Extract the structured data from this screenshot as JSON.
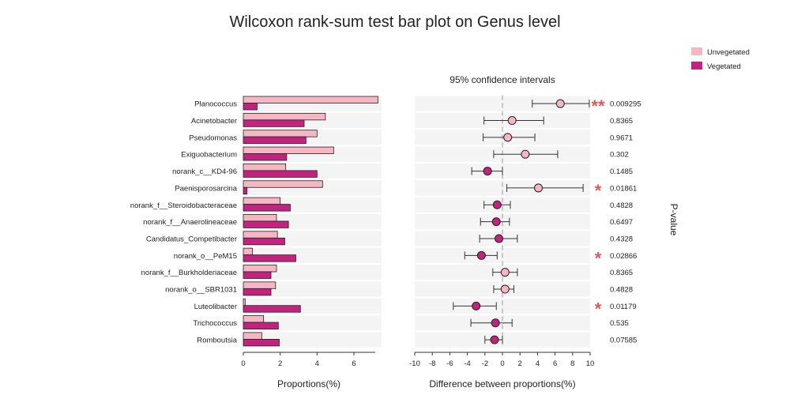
{
  "chart_data": {
    "type": "bar",
    "title": "Wilcoxon rank-sum test bar plot on Genus level",
    "subtitle": "95% confidence intervals",
    "left_xlabel": "Proportions(%)",
    "right_xlabel": "Difference between proportions(%)",
    "pvalue_label": "P-value",
    "left_xticks": [
      0,
      2,
      4,
      6
    ],
    "left_xlim": [
      0,
      7.5
    ],
    "right_xticks": [
      -10,
      -8,
      -6,
      -4,
      -2,
      0,
      2,
      4,
      6,
      8,
      10
    ],
    "right_xlim": [
      -10,
      10
    ],
    "colors": {
      "Unvegetated": "#f6b7c4",
      "Vegetated": "#c2237e",
      "stripe": "#f4f4f4",
      "star": "#e05a5a"
    },
    "series": [
      {
        "name": "Unvegetated",
        "color": "#f6b7c4"
      },
      {
        "name": "Vegetated",
        "color": "#c2237e"
      }
    ],
    "categories": [
      "Planococcus",
      "Acinetobacter",
      "Pseudomonas",
      "Exiguobacterium",
      "norank_c__KD4-96",
      "Paenisporosarcina",
      "norank_f__Steroidobacteraceae",
      "norank_f__Anaerolineaceae",
      "Candidatus_Competibacter",
      "norank_o__PeM15",
      "norank_f__Burkholderiaceae",
      "norank_o__SBR1031",
      "Luteolibacter",
      "Trichococcus",
      "Romboutsia"
    ],
    "rows": [
      {
        "genus": "Planococcus",
        "unvegetated": 7.3,
        "vegetated": 0.75,
        "diff": 6.6,
        "ci_low": 3.4,
        "ci_high": 9.9,
        "pvalue": "0.009295",
        "stars": "**"
      },
      {
        "genus": "Acinetobacter",
        "unvegetated": 4.45,
        "vegetated": 3.3,
        "diff": 1.1,
        "ci_low": -2.1,
        "ci_high": 4.7,
        "pvalue": "0.8365",
        "stars": ""
      },
      {
        "genus": "Pseudomonas",
        "unvegetated": 4.0,
        "vegetated": 3.4,
        "diff": 0.6,
        "ci_low": -2.2,
        "ci_high": 3.7,
        "pvalue": "0.9671",
        "stars": ""
      },
      {
        "genus": "Exiguobacterium",
        "unvegetated": 4.9,
        "vegetated": 2.35,
        "diff": 2.6,
        "ci_low": -1.0,
        "ci_high": 6.3,
        "pvalue": "0.302",
        "stars": ""
      },
      {
        "genus": "norank_c__KD4-96",
        "unvegetated": 2.3,
        "vegetated": 4.0,
        "diff": -1.7,
        "ci_low": -3.5,
        "ci_high": 0.0,
        "pvalue": "0.1485",
        "stars": ""
      },
      {
        "genus": "Paenisporosarcina",
        "unvegetated": 4.3,
        "vegetated": 0.2,
        "diff": 4.1,
        "ci_low": 0.5,
        "ci_high": 9.2,
        "pvalue": "0.01861",
        "stars": "*"
      },
      {
        "genus": "norank_f__Steroidobacteraceae",
        "unvegetated": 2.0,
        "vegetated": 2.55,
        "diff": -0.6,
        "ci_low": -2.1,
        "ci_high": 0.9,
        "pvalue": "0.4828",
        "stars": ""
      },
      {
        "genus": "norank_f__Anaerolineaceae",
        "unvegetated": 1.8,
        "vegetated": 2.45,
        "diff": -0.7,
        "ci_low": -2.5,
        "ci_high": 0.8,
        "pvalue": "0.6497",
        "stars": ""
      },
      {
        "genus": "Candidatus_Competibacter",
        "unvegetated": 1.85,
        "vegetated": 2.25,
        "diff": -0.4,
        "ci_low": -2.6,
        "ci_high": 1.7,
        "pvalue": "0.4328",
        "stars": ""
      },
      {
        "genus": "norank_o__PeM15",
        "unvegetated": 0.5,
        "vegetated": 2.85,
        "diff": -2.4,
        "ci_low": -4.3,
        "ci_high": -0.6,
        "pvalue": "0.02866",
        "stars": "*"
      },
      {
        "genus": "norank_f__Burkholderiaceae",
        "unvegetated": 1.8,
        "vegetated": 1.5,
        "diff": 0.3,
        "ci_low": -1.1,
        "ci_high": 1.7,
        "pvalue": "0.8365",
        "stars": ""
      },
      {
        "genus": "norank_o__SBR1031",
        "unvegetated": 1.75,
        "vegetated": 1.5,
        "diff": 0.3,
        "ci_low": -1.0,
        "ci_high": 1.3,
        "pvalue": "0.4828",
        "stars": ""
      },
      {
        "genus": "Luteolibacter",
        "unvegetated": 0.1,
        "vegetated": 3.1,
        "diff": -3.0,
        "ci_low": -5.6,
        "ci_high": -0.7,
        "pvalue": "0.01179",
        "stars": "*"
      },
      {
        "genus": "Trichococcus",
        "unvegetated": 1.1,
        "vegetated": 1.9,
        "diff": -0.8,
        "ci_low": -3.6,
        "ci_high": 1.1,
        "pvalue": "0.535",
        "stars": ""
      },
      {
        "genus": "Romboutsia",
        "unvegetated": 1.0,
        "vegetated": 1.95,
        "diff": -0.9,
        "ci_low": -2.0,
        "ci_high": 0.0,
        "pvalue": "0.07585",
        "stars": ""
      }
    ],
    "legend": {
      "position": "top-right",
      "entries": [
        "Unvegetated",
        "Vegetated"
      ]
    },
    "grid": false
  }
}
